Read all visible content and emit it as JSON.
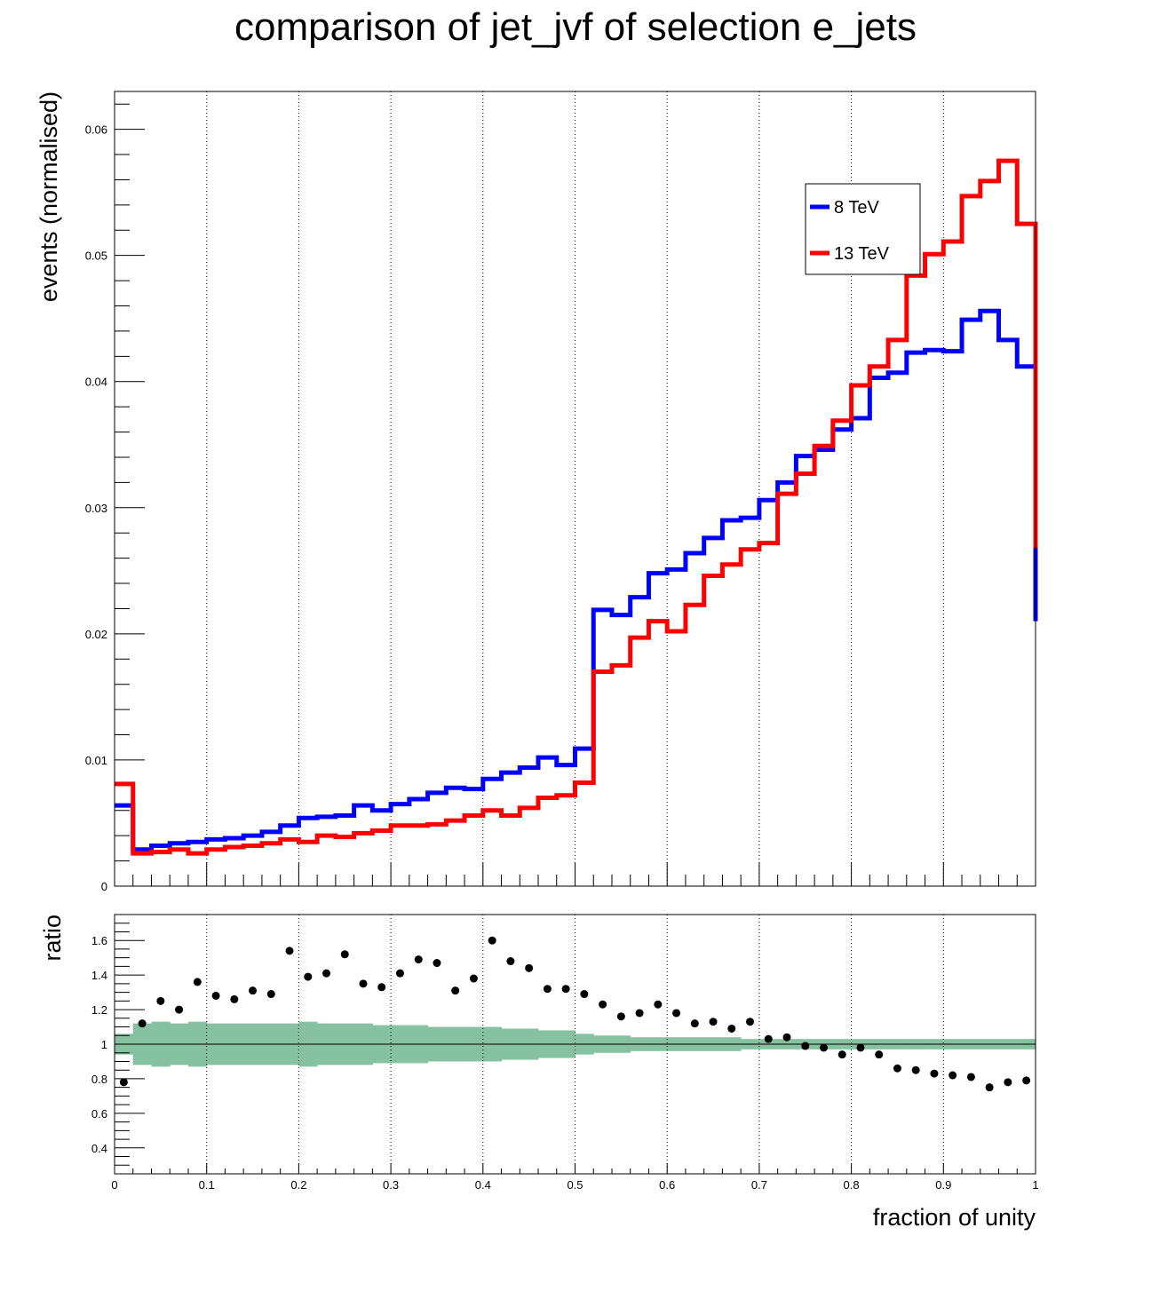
{
  "title": "comparison of jet_jvf of selection e_jets",
  "colors": {
    "series_8tev": "#0000ff",
    "series_13tev": "#ff0000",
    "band": "#86c2a1",
    "points": "#000000"
  },
  "chart_data": [
    {
      "type": "line",
      "subtype": "step-histogram",
      "ylabel": "events (normalised)",
      "xlim": [
        0,
        1
      ],
      "ylim": [
        0,
        0.063
      ],
      "y_ticks": [
        "0",
        "0.01",
        "0.02",
        "0.03",
        "0.04",
        "0.05",
        "0.06"
      ],
      "y_tick_values": [
        0,
        0.01,
        0.02,
        0.03,
        0.04,
        0.05,
        0.06
      ],
      "bin_edges_start": 0,
      "bin_width": 0.02,
      "grid": "vertical dotted",
      "legend": {
        "placement": "top-right",
        "entries": [
          "8 TeV",
          "13 TeV"
        ]
      },
      "series": [
        {
          "name": "8 TeV",
          "values": [
            0.0064,
            0.0029,
            0.0032,
            0.0034,
            0.0035,
            0.0037,
            0.0038,
            0.004,
            0.0043,
            0.0048,
            0.0054,
            0.0055,
            0.0056,
            0.0064,
            0.006,
            0.0065,
            0.0069,
            0.0074,
            0.0078,
            0.0077,
            0.0085,
            0.009,
            0.0094,
            0.0102,
            0.0096,
            0.0109,
            0.0219,
            0.0215,
            0.0229,
            0.0248,
            0.0251,
            0.0264,
            0.0276,
            0.029,
            0.0292,
            0.0306,
            0.032,
            0.0341,
            0.0346,
            0.0362,
            0.0371,
            0.0403,
            0.0407,
            0.0423,
            0.0425,
            0.0424,
            0.0449,
            0.0456,
            0.0433,
            0.0412,
            0.021
          ]
        },
        {
          "name": "13 TeV",
          "values": [
            0.0081,
            0.0026,
            0.0027,
            0.0029,
            0.0026,
            0.0029,
            0.0031,
            0.0032,
            0.0034,
            0.0037,
            0.0035,
            0.004,
            0.0039,
            0.0042,
            0.0044,
            0.0048,
            0.0048,
            0.0049,
            0.0052,
            0.0056,
            0.006,
            0.0056,
            0.0062,
            0.007,
            0.0072,
            0.0082,
            0.017,
            0.0175,
            0.0197,
            0.021,
            0.0202,
            0.0223,
            0.0246,
            0.0255,
            0.0267,
            0.0272,
            0.0311,
            0.0327,
            0.0349,
            0.0369,
            0.0397,
            0.0412,
            0.0433,
            0.0484,
            0.0501,
            0.0511,
            0.0547,
            0.0559,
            0.0575,
            0.0525,
            0.0268
          ]
        }
      ]
    },
    {
      "type": "scatter",
      "xlabel": "fraction of unity",
      "ylabel": "ratio",
      "xlim": [
        0,
        1
      ],
      "ylim": [
        0.25,
        1.75
      ],
      "x_ticks": [
        "0",
        "0.1",
        "0.2",
        "0.3",
        "0.4",
        "0.5",
        "0.6",
        "0.7",
        "0.8",
        "0.9",
        "1"
      ],
      "x_tick_values": [
        0,
        0.1,
        0.2,
        0.3,
        0.4,
        0.5,
        0.6,
        0.7,
        0.8,
        0.9,
        1
      ],
      "y_ticks": [
        "0.4",
        "0.6",
        "0.8",
        "1",
        "1.2",
        "1.4",
        "1.6"
      ],
      "y_tick_values": [
        0.4,
        0.6,
        0.8,
        1,
        1.2,
        1.4,
        1.6
      ],
      "reference_line": 1,
      "points": {
        "x": [
          0.01,
          0.03,
          0.05,
          0.07,
          0.09,
          0.11,
          0.13,
          0.15,
          0.17,
          0.19,
          0.21,
          0.23,
          0.25,
          0.27,
          0.29,
          0.31,
          0.33,
          0.35,
          0.37,
          0.39,
          0.41,
          0.43,
          0.45,
          0.47,
          0.49,
          0.51,
          0.53,
          0.55,
          0.57,
          0.59,
          0.61,
          0.63,
          0.65,
          0.67,
          0.69,
          0.71,
          0.73,
          0.75,
          0.77,
          0.79,
          0.81,
          0.83,
          0.85,
          0.87,
          0.89,
          0.91,
          0.93,
          0.95,
          0.97,
          0.99
        ],
        "y": [
          0.78,
          1.12,
          1.25,
          1.2,
          1.36,
          1.28,
          1.26,
          1.31,
          1.29,
          1.54,
          1.39,
          1.41,
          1.52,
          1.35,
          1.33,
          1.41,
          1.49,
          1.47,
          1.31,
          1.38,
          1.6,
          1.48,
          1.44,
          1.32,
          1.32,
          1.29,
          1.23,
          1.16,
          1.18,
          1.23,
          1.18,
          1.12,
          1.13,
          1.09,
          1.13,
          1.03,
          1.04,
          0.99,
          0.98,
          0.94,
          0.98,
          0.94,
          0.86,
          0.85,
          0.83,
          0.82,
          0.81,
          0.75,
          0.78,
          0.79
        ]
      },
      "uncertainty_band": {
        "x_edges_start": 0,
        "bin_width": 0.02,
        "half_width": [
          0.06,
          0.12,
          0.13,
          0.12,
          0.13,
          0.12,
          0.12,
          0.12,
          0.12,
          0.12,
          0.13,
          0.12,
          0.12,
          0.12,
          0.11,
          0.11,
          0.11,
          0.1,
          0.1,
          0.1,
          0.1,
          0.09,
          0.09,
          0.08,
          0.08,
          0.06,
          0.05,
          0.05,
          0.04,
          0.04,
          0.04,
          0.04,
          0.04,
          0.04,
          0.03,
          0.03,
          0.03,
          0.03,
          0.03,
          0.03,
          0.03,
          0.03,
          0.03,
          0.03,
          0.03,
          0.03,
          0.03,
          0.03,
          0.03,
          0.03
        ]
      }
    }
  ]
}
